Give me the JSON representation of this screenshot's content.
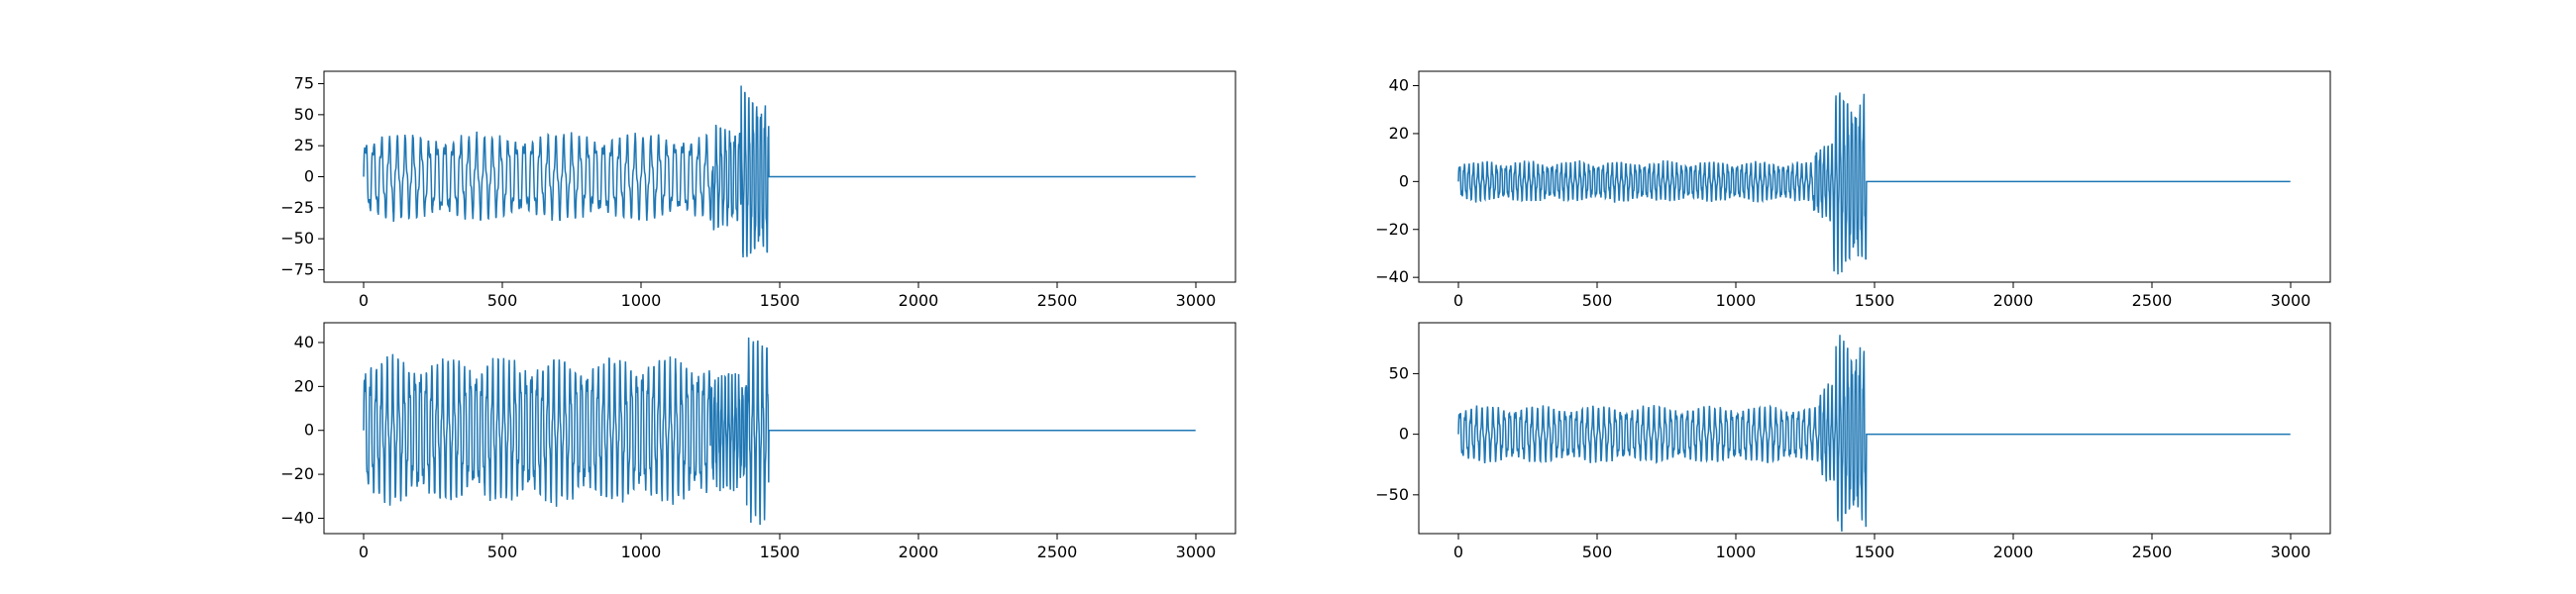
{
  "figure": {
    "layout": "2x2 grid of line plots",
    "background": "#ffffff"
  },
  "line_color": "#1f77b4",
  "chart_data": [
    {
      "type": "line",
      "title": "",
      "xlabel": "",
      "ylabel": "",
      "xlim": [
        0,
        3000
      ],
      "ylim": [
        -85,
        85
      ],
      "grid": false,
      "xticks": [
        0,
        500,
        1000,
        1500,
        2000,
        2500,
        3000
      ],
      "yticks": [
        -75,
        -50,
        -25,
        0,
        25,
        50,
        75
      ],
      "signal": {
        "length": 3000,
        "active_until": 1460,
        "segments": [
          {
            "x_start": 0,
            "x_end": 1260,
            "amplitude": 37,
            "cycles_per_100": 3.5
          },
          {
            "x_start": 1260,
            "x_end": 1360,
            "amplitude": 48,
            "cycles_per_100": 6
          },
          {
            "x_start": 1360,
            "x_end": 1460,
            "amplitude": 78,
            "cycles_per_100": 7
          }
        ],
        "after": 0
      }
    },
    {
      "type": "line",
      "title": "",
      "xlabel": "",
      "ylabel": "",
      "xlim": [
        0,
        3000
      ],
      "ylim": [
        -42,
        46
      ],
      "grid": false,
      "xticks": [
        0,
        500,
        1000,
        1500,
        2000,
        2500,
        3000
      ],
      "yticks": [
        -40,
        -20,
        0,
        20,
        40
      ],
      "signal": {
        "length": 3000,
        "active_until": 1470,
        "segments": [
          {
            "x_start": 0,
            "x_end": 1280,
            "amplitude": 9,
            "cycles_per_100": 6
          },
          {
            "x_start": 1280,
            "x_end": 1350,
            "amplitude": 18,
            "cycles_per_100": 7
          },
          {
            "x_start": 1350,
            "x_end": 1470,
            "amplitude": 42,
            "cycles_per_100": 7
          }
        ],
        "after": 0
      }
    },
    {
      "type": "line",
      "title": "",
      "xlabel": "",
      "ylabel": "",
      "xlim": [
        0,
        3000
      ],
      "ylim": [
        -47,
        49
      ],
      "grid": false,
      "xticks": [
        0,
        500,
        1000,
        1500,
        2000,
        2500,
        3000
      ],
      "yticks": [
        -40,
        -20,
        0,
        20,
        40
      ],
      "signal": {
        "length": 3000,
        "active_until": 1460,
        "segments": [
          {
            "x_start": 0,
            "x_end": 1250,
            "amplitude": 35,
            "cycles_per_100": 5
          },
          {
            "x_start": 1250,
            "x_end": 1380,
            "amplitude": 30,
            "cycles_per_100": 8
          },
          {
            "x_start": 1380,
            "x_end": 1460,
            "amplitude": 45,
            "cycles_per_100": 6
          }
        ],
        "after": 0
      }
    },
    {
      "type": "line",
      "title": "",
      "xlabel": "",
      "ylabel": "",
      "xlim": [
        0,
        3000
      ],
      "ylim": [
        -82,
        92
      ],
      "grid": false,
      "xticks": [
        0,
        500,
        1000,
        1500,
        2000,
        2500,
        3000
      ],
      "yticks": [
        -50,
        0,
        50
      ],
      "signal": {
        "length": 3000,
        "active_until": 1470,
        "segments": [
          {
            "x_start": 0,
            "x_end": 1300,
            "amplitude": 25,
            "cycles_per_100": 5
          },
          {
            "x_start": 1300,
            "x_end": 1360,
            "amplitude": 45,
            "cycles_per_100": 7
          },
          {
            "x_start": 1360,
            "x_end": 1470,
            "amplitude": 88,
            "cycles_per_100": 7
          }
        ],
        "after": 0
      }
    }
  ]
}
